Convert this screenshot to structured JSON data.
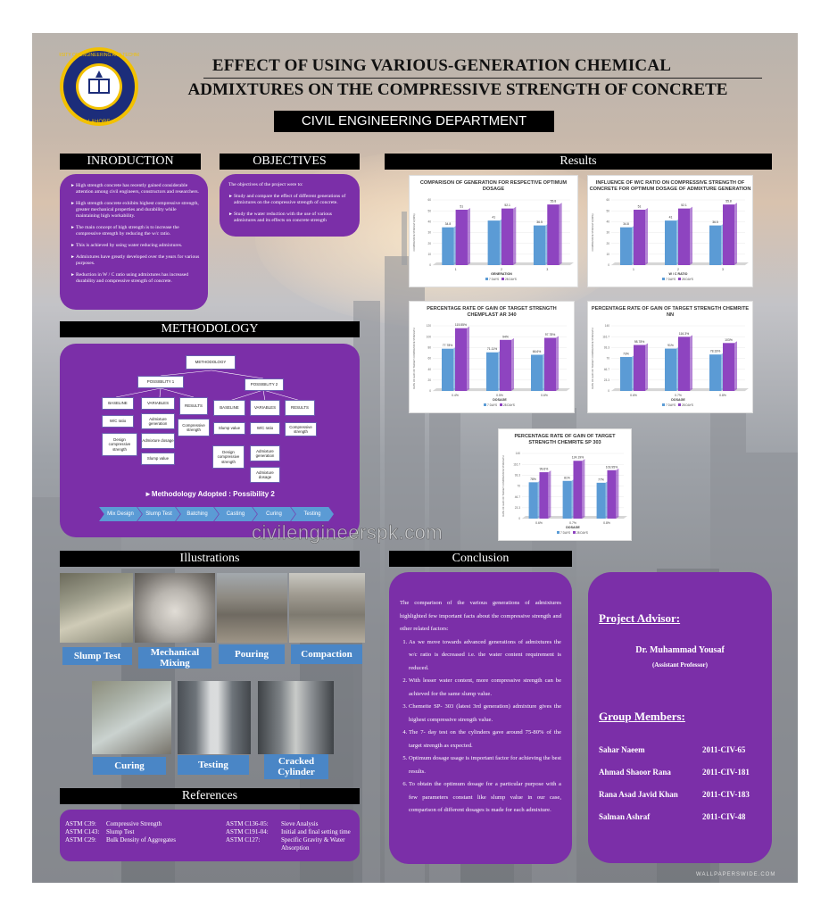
{
  "header": {
    "logo_text": "UNIVERSITY OF ENGINEERING AND TECHNOLOGY LAHORE",
    "title_line1": "EFFECT OF USING VARIOUS-GENERATION CHEMICAL",
    "title_line2": "ADMIXTURES ON THE COMPRESSIVE STRENGTH OF CONCRETE",
    "department": "CIVIL ENGINEERING DEPARTMENT"
  },
  "sections": {
    "introduction": "INRODUCTION",
    "objectives": "OBJECTIVES",
    "results": "Results",
    "methodology": "METHODOLOGY",
    "illustrations": "Illustrations",
    "conclusion": "Conclusion",
    "references": "References"
  },
  "introduction": {
    "items": [
      "High strength concrete has recently gained considerable attention among civil engineers, constructors and researchers.",
      "High strength concrete exhibits highest compressive strength, greater mechanical properties and durability while maintaining high workability.",
      "The main concept of high strength is to increase the compressive strength by reducing the w/c ratio.",
      "This is achieved by using water reducing admixtures.",
      "Admixtures have greatly developed over the years for various purposes.",
      "Reduction in W / C ratio using admixtures has increased durability and compressive strength of concrete."
    ]
  },
  "objectives": {
    "intro": "The objectives of the project were to:",
    "items": [
      "Study and compare the effect of different generations of admixtures on the compressive strength of concrete.",
      "Study the water reduction with the use of various admixtures and its effects on concrete strength"
    ]
  },
  "methodology": {
    "root": "METHODOLOGY",
    "possibility1": "POSSIBILITY 1",
    "possibility2": "POSSIBILITY 2",
    "p1_baseline": "BASELINE",
    "p1_variables": "VARIABLES",
    "p1_results": "RESULTS",
    "p1_wc": "W/C ratio",
    "p1_design": "Design compressive strength",
    "p1_adm_gen": "Admixture generation",
    "p1_adm_dos": "Admixture dosage",
    "p1_slump": "Slump value",
    "p1_comp": "Compressive strength",
    "p2_baseline": "BASELINE",
    "p2_variables": "VARIABLES",
    "p2_results": "RESULTS",
    "p2_slump": "Slump value",
    "p2_design": "Design compressive strength",
    "p2_wc": "W/C ratio",
    "p2_adm_gen": "Admixture generation",
    "p2_adm_dos": "Admixture dosage",
    "p2_comp": "Compressive strength",
    "adopted": "►Methodology Adopted : Possibility 2",
    "steps": [
      "Mix Design",
      "Slump Test",
      "Batching",
      "Casting",
      "Curing",
      "Testing"
    ]
  },
  "watermark": "civilengineerspk.com",
  "illustrations": {
    "labels": [
      "Slump Test",
      "Mechanical Mixing",
      "Pouring",
      "Compaction",
      "Curing",
      "Testing",
      "Cracked Cylinder"
    ]
  },
  "conclusion": {
    "intro": "The comparison of the various generations of admixtures highlighted few important facts about the compressive strength and other related factors:",
    "items": [
      "As we move towards advanced generations of admixtures the w/c ratio is decreased i.e. the water content requirement is reduced.",
      "With lesser water content, more compressive strength can be achieved for the same slump value.",
      "Chemeite SP- 303 (latest 3rd generation) admixture gives the highest compressive strength value.",
      "The 7- day test on the cylinders gave around 75-80% of the target strength as expected.",
      "Optimum dosage usage is important factor for achieving the best results.",
      "To obtain the optimum dosage for a particular purpose with a few parameters constant like slump value in our case, comparison of different dosages is made for each admixture."
    ]
  },
  "team": {
    "advisor_heading": "Project Advisor:",
    "advisor_name": "Dr. Muhammad Yousaf",
    "advisor_title": "(Assistant Professor)",
    "members_heading": "Group Members:",
    "members": [
      {
        "name": "Sahar Naeem",
        "id": "2011-CIV-65"
      },
      {
        "name": "Ahmad Shaoor Rana",
        "id": "2011-CIV-181"
      },
      {
        "name": "Rana Asad Javid Khan",
        "id": "2011-CIV-183"
      },
      {
        "name": "Salman Ashraf",
        "id": "2011-CIV-48"
      }
    ]
  },
  "references": {
    "left": [
      {
        "code": "ASTM C39:",
        "text": "Compressive Strength"
      },
      {
        "code": "ASTM C143:",
        "text": "Slump Test"
      },
      {
        "code": "ASTM C29:",
        "text": "Bulk Density of Aggregates"
      }
    ],
    "right": [
      {
        "code": "ASTM C136-05:",
        "text": "Sieve Analysis"
      },
      {
        "code": "ASTM C191-04:",
        "text": "Initial and final setting time"
      },
      {
        "code": "ASTM C127:",
        "text": "Specific Gravity & Water Absorption"
      }
    ]
  },
  "footer_watermark": "WALLPAPERSWIDE.COM",
  "colors": {
    "purple": "#7b2fa8",
    "blue_bar": "#5b9bd5",
    "purple_bar": "#8e44c0",
    "label_blue": "#4a86c6"
  },
  "chart_data": [
    {
      "type": "bar",
      "title": "COMPARISON OF GENERATION FOR RESPECTIVE OPTIMUM DOSAGE",
      "xlabel": "GENERATION",
      "ylabel": "COMPRESSIVE STRENGTH (MPA)",
      "categories": [
        "1",
        "2",
        "3"
      ],
      "series": [
        {
          "name": "7 DAYS",
          "values": [
            34.8,
            41,
            36.5
          ]
        },
        {
          "name": "28 DAYS",
          "values": [
            51,
            52.1,
            55.8
          ]
        }
      ],
      "ylim": [
        0,
        60
      ]
    },
    {
      "type": "bar",
      "title": "INFLUENCE OF W/C RATIO ON COMPRESSIVE STRENGTH OF CONCRETE FOR OPTIMUM DOSAGE OF ADMIXTURE GENERATION",
      "xlabel": "W / C RATIO",
      "ylabel": "COMPRESSIVE STRENGTH (MPA)",
      "categories": [
        "1",
        "2",
        "3"
      ],
      "series": [
        {
          "name": "7 DAYS",
          "values": [
            34.8,
            41,
            36.5
          ]
        },
        {
          "name": "28 DAYS",
          "values": [
            51,
            52.1,
            55.8
          ]
        }
      ],
      "ylim": [
        0,
        60
      ]
    },
    {
      "type": "bar",
      "title": "PERCENTAGE RATE OF GAIN OF TARGET STRENGTH CHEMPLAST AR 340",
      "xlabel": "DOSAGE",
      "ylabel": "RATE OF GAIN OF TARGET COMPRESSIVE STRENGTH",
      "categories": [
        "0.4%",
        "0.5%",
        "0.6%"
      ],
      "series": [
        {
          "name": "7 DAYS",
          "values": [
            77.78,
            71.11,
            66.6
          ]
        },
        {
          "name": "28 DAYS",
          "values": [
            115.55,
            94,
            97.78
          ]
        }
      ],
      "ylim": [
        0,
        120
      ]
    },
    {
      "type": "bar",
      "title": "PERCENTAGE RATE OF GAIN OF TARGET STRENGTH CHEMRITE NN",
      "xlabel": "DOSAGE",
      "ylabel": "RATE OF GAIN OF TARGET COMPRESSIVE STRENGTH",
      "categories": [
        "0.6%",
        "0.7%",
        "0.8%"
      ],
      "series": [
        {
          "name": "7 DAYS",
          "values": [
            73,
            91,
            78.33
          ]
        },
        {
          "name": "28 DAYS",
          "values": [
            98.78,
            116.3,
            103
          ]
        }
      ],
      "ylim": [
        0,
        140
      ]
    },
    {
      "type": "bar",
      "title": "PERCENTAGE RATE OF GAIN OF TARGET STRENGTH CHEMRITE SP 303",
      "xlabel": "DOSAGE",
      "ylabel": "RATE OF GAIN OF TARGET COMPRESSIVE STRENGTH",
      "categories": [
        "0.6%",
        "0.7%",
        "0.8%"
      ],
      "series": [
        {
          "name": "7 DAYS",
          "values": [
            78,
            81,
            77
          ]
        },
        {
          "name": "28 DAYS",
          "values": [
            99.6,
            124.19,
            103.95
          ]
        }
      ],
      "ylim": [
        0,
        140
      ]
    }
  ]
}
